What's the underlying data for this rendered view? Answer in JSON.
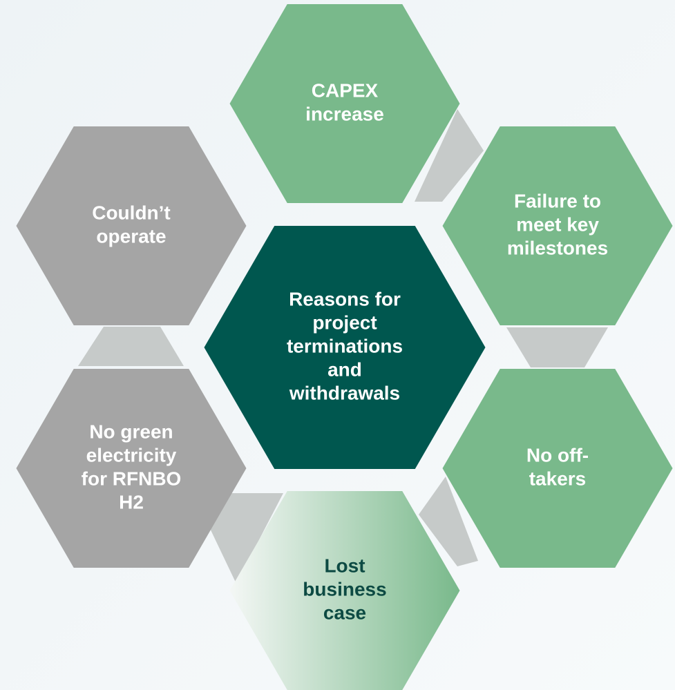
{
  "center": {
    "lines": [
      "Reasons for",
      "project",
      "terminations",
      "and",
      "withdrawals"
    ]
  },
  "nodes": [
    {
      "lines": [
        "CAPEX",
        "increase"
      ]
    },
    {
      "lines": [
        "Failure to",
        "meet key",
        "milestones"
      ]
    },
    {
      "lines": [
        "No off-",
        "takers"
      ]
    },
    {
      "lines": [
        "Lost",
        "business",
        "case"
      ]
    },
    {
      "lines": [
        "No green",
        "electricity",
        "for RFNBO",
        "H2"
      ]
    },
    {
      "lines": [
        "Couldn’t",
        "operate"
      ]
    }
  ]
}
